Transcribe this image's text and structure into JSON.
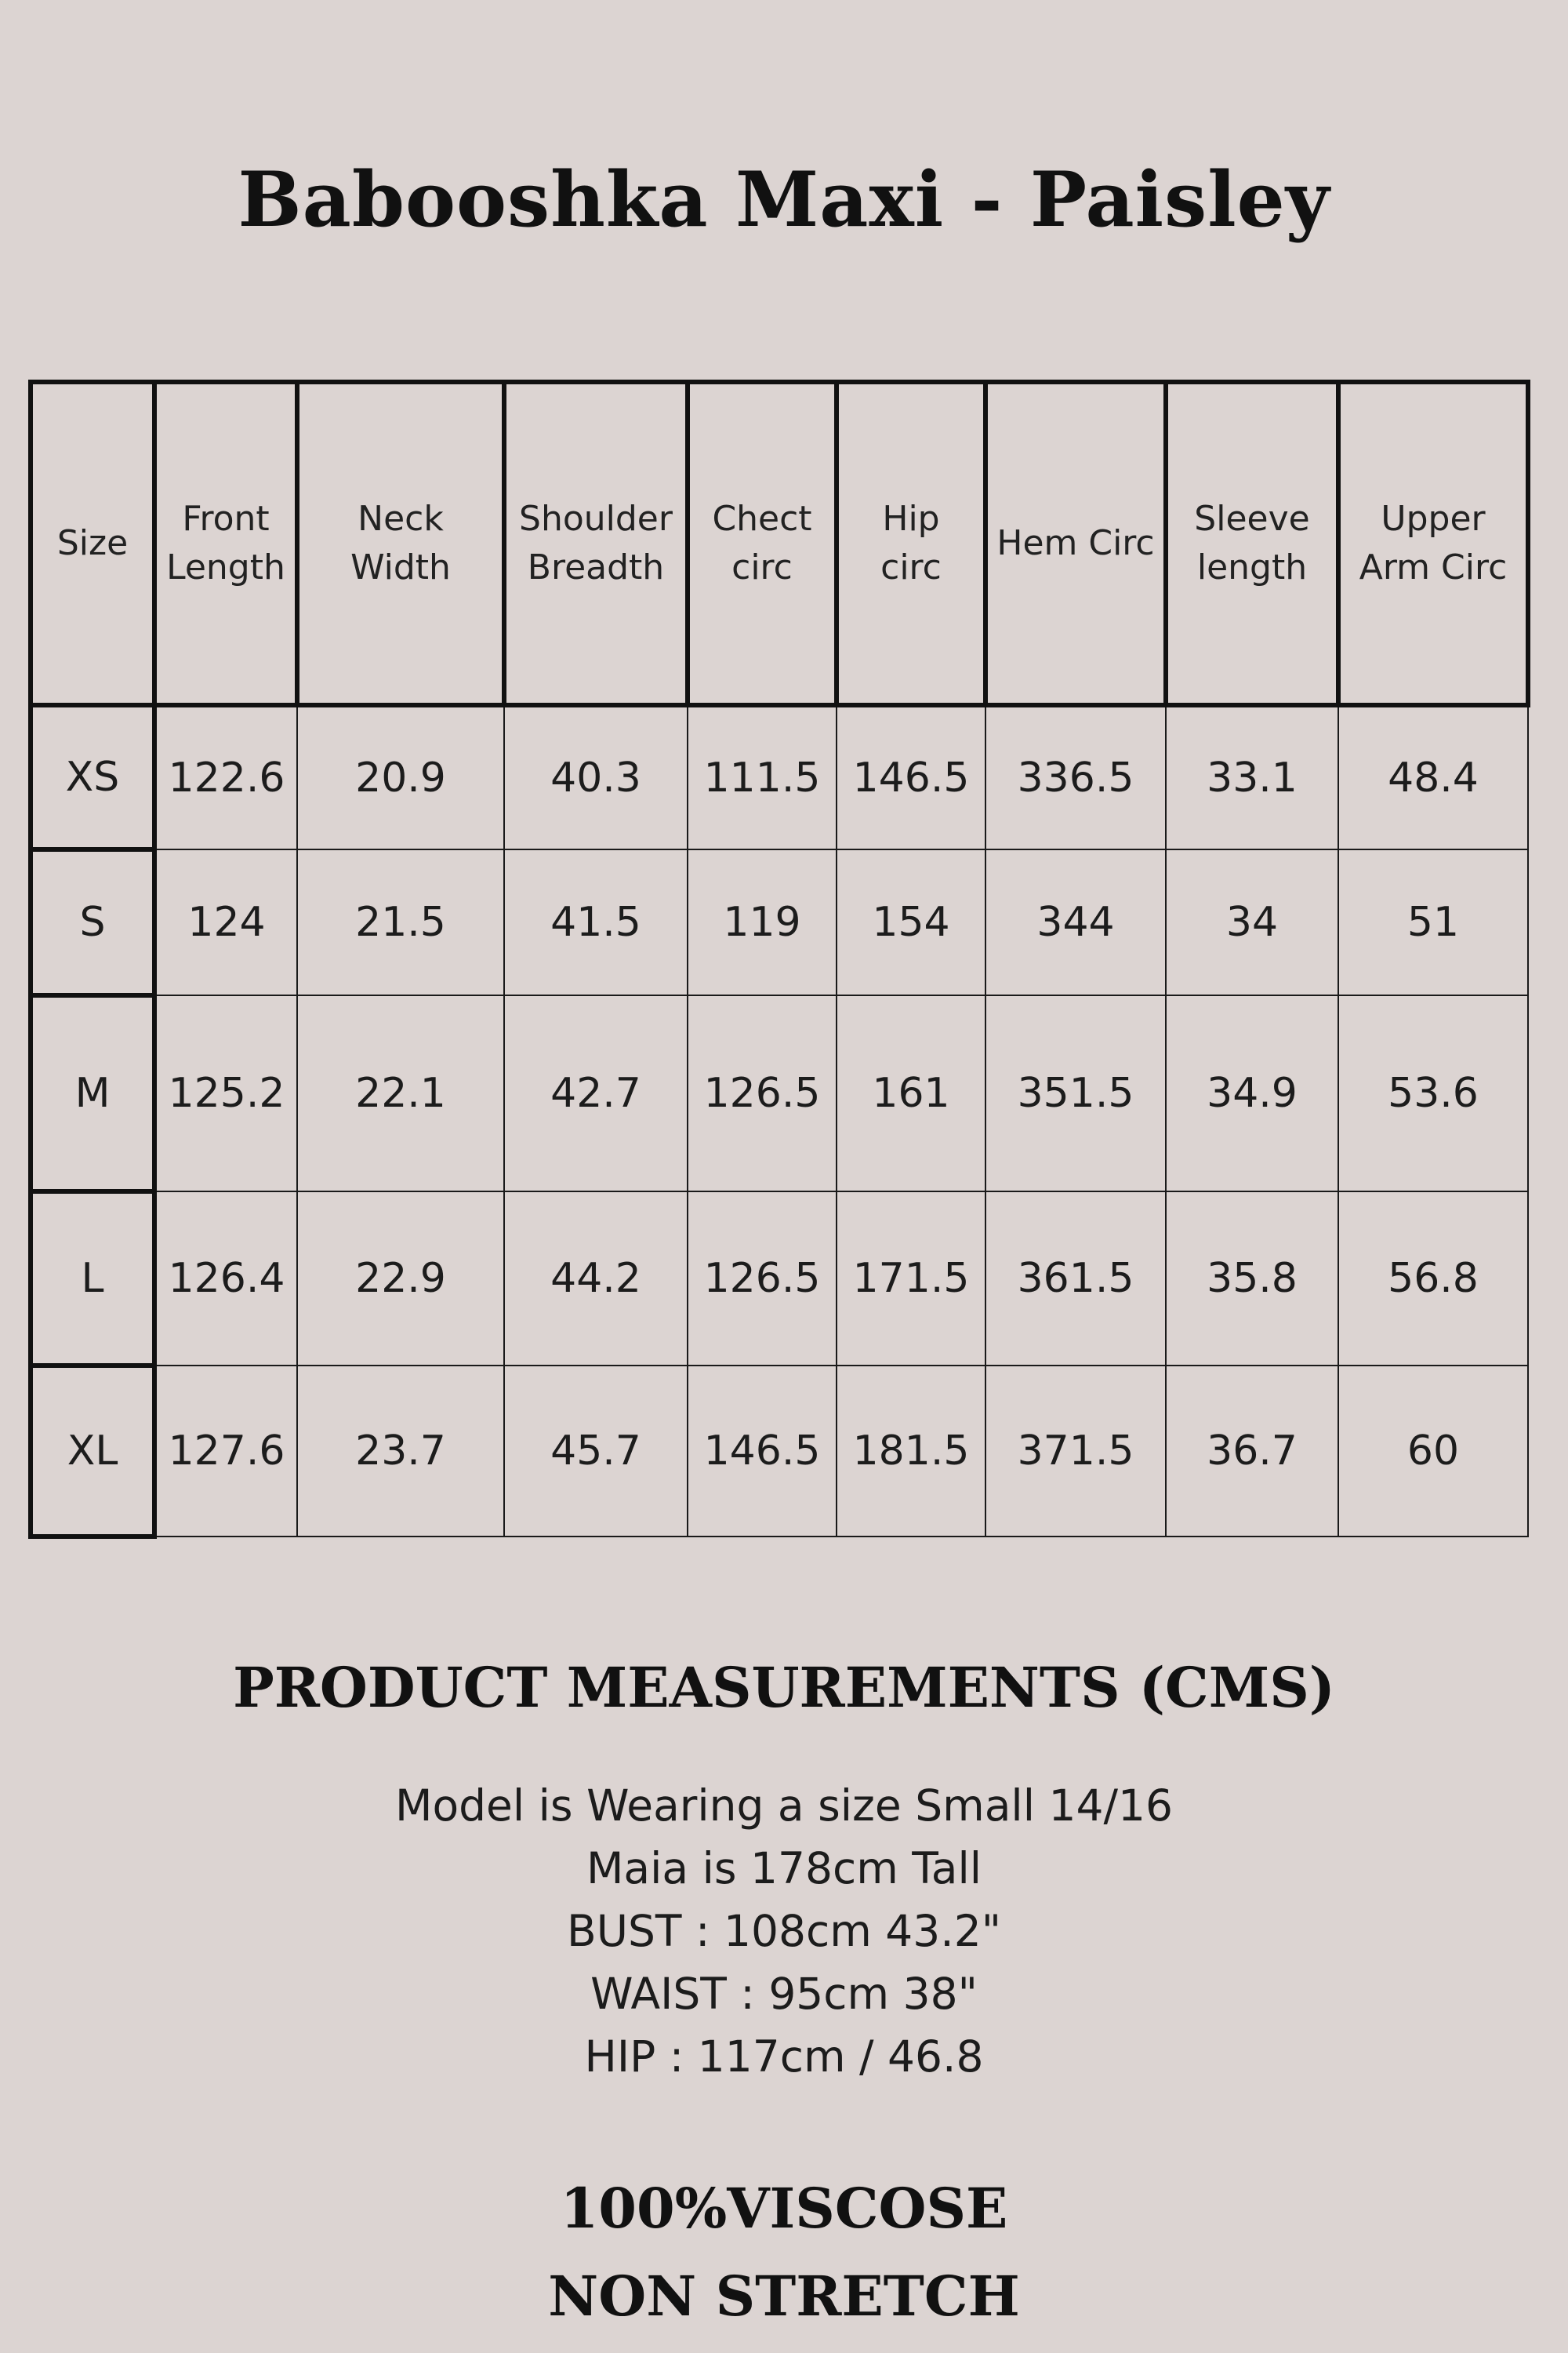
{
  "title": "Babooshka Maxi - Paisley",
  "table": {
    "headers": [
      [
        "Size"
      ],
      [
        "Front",
        "Length"
      ],
      [
        "Neck",
        "Width"
      ],
      [
        "Shoulder",
        "Breadth"
      ],
      [
        "Chect",
        "circ"
      ],
      [
        "Hip",
        "circ"
      ],
      [
        "Hem Circ"
      ],
      [
        "Sleeve",
        "length"
      ],
      [
        "Upper",
        "Arm Circ"
      ]
    ],
    "rows": [
      [
        "XS",
        "122.6",
        "20.9",
        "40.3",
        "111.5",
        "146.5",
        "336.5",
        "33.1",
        "48.4"
      ],
      [
        "S",
        "124",
        "21.5",
        "41.5",
        "119",
        "154",
        "344",
        "34",
        "51"
      ],
      [
        "M",
        "125.2",
        "22.1",
        "42.7",
        "126.5",
        "161",
        "351.5",
        "34.9",
        "53.6"
      ],
      [
        "L",
        "126.4",
        "22.9",
        "44.2",
        "126.5",
        "171.5",
        "361.5",
        "35.8",
        "56.8"
      ],
      [
        "XL",
        "127.6",
        "23.7",
        "45.7",
        "146.5",
        "181.5",
        "371.5",
        "36.7",
        "60"
      ]
    ]
  },
  "section_heading": "PRODUCT MEASUREMENTS (CMS)",
  "model_info": [
    "Model is Wearing a size Small 14/16",
    "Maia is 178cm Tall",
    "BUST : 108cm 43.2\"",
    "WAIST : 95cm 38\"",
    "HIP : 117cm / 46.8"
  ],
  "fabric": [
    "100%VISCOSE",
    "NON STRETCH"
  ]
}
